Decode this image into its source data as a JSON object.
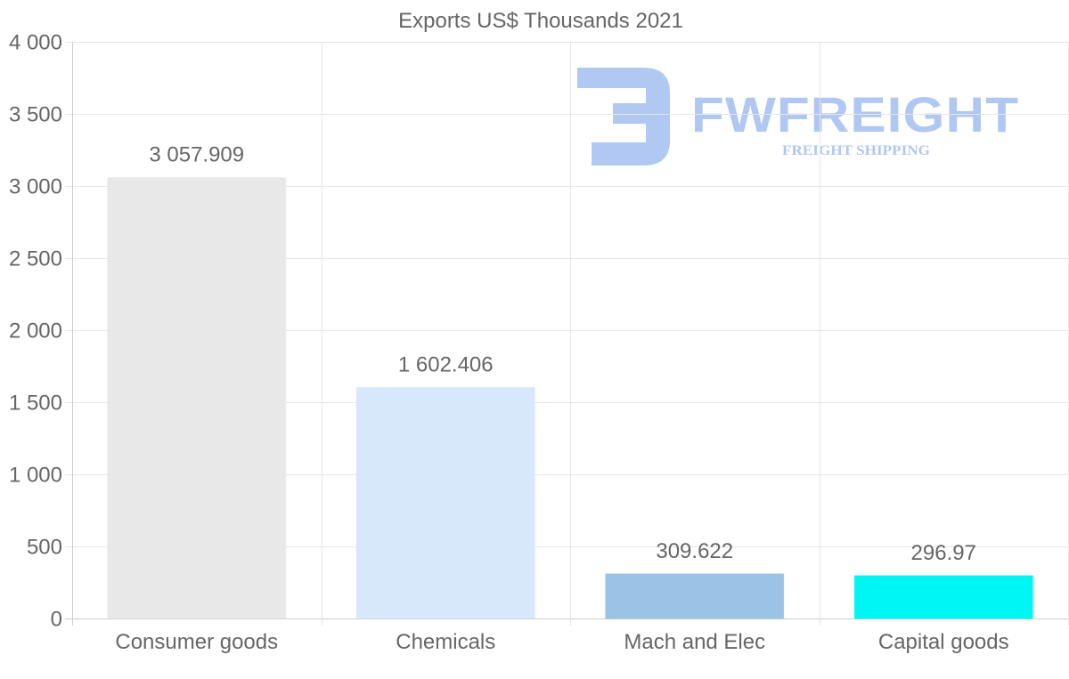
{
  "chart_data": {
    "type": "bar",
    "title": "Exports US$ Thousands 2021",
    "categories": [
      "Consumer goods",
      "Chemicals",
      "Mach and Elec",
      "Capital goods"
    ],
    "values": [
      3057.909,
      1602.406,
      309.622,
      296.97
    ],
    "value_labels": [
      "3 057.909",
      "1 602.406",
      "309.622",
      "296.97"
    ],
    "bar_colors": [
      "#e8e8e8",
      "#d6e8fa",
      "#9cc3e6",
      "#00f5f5"
    ],
    "ylim": [
      0,
      4000
    ],
    "yticks": [
      0,
      500,
      1000,
      1500,
      2000,
      2500,
      3000,
      3500,
      4000
    ],
    "ytick_labels": [
      "0",
      "500",
      "1 000",
      "1 500",
      "2 000",
      "2 500",
      "3 000",
      "3 500",
      "4 000"
    ],
    "xlabel": "",
    "ylabel": "",
    "grid": true,
    "legend": "none"
  },
  "watermark": {
    "name": "FWFREIGHT",
    "tagline": "FREIGHT SHIPPING",
    "color": "#6f9be8"
  }
}
